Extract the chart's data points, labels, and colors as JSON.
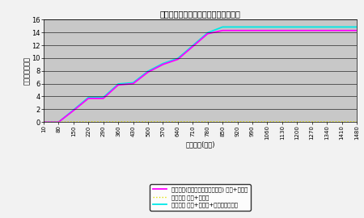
{
  "title": "税源移譲と定率減税廃止による増税額",
  "xlabel": "課税所得(万円)",
  "ylabel": "課税額（万円）",
  "x_ticks": [
    10,
    80,
    150,
    220,
    290,
    360,
    430,
    500,
    570,
    640,
    710,
    780,
    850,
    920,
    990,
    1060,
    1130,
    1200,
    1270,
    1340,
    1410,
    1480
  ],
  "ylim": [
    0,
    16
  ],
  "yticks": [
    0,
    2,
    4,
    6,
    8,
    10,
    12,
    14,
    16
  ],
  "plot_bg_color": "#c8c8c8",
  "fig_bg_color": "#f2f2f2",
  "line1_color": "#ff00ff",
  "line2_color": "#e0e000",
  "line3_color": "#00e8e8",
  "legend1": "定率減税(今年もし去年同様なら) 国税+地方税",
  "legend2": "増税割合 国税+地方税",
  "legend3": "増税割合 国税+地方税+定率減税廃止分",
  "x_data": [
    10,
    80,
    150,
    220,
    290,
    360,
    430,
    500,
    570,
    640,
    710,
    780,
    850,
    920,
    990,
    1060,
    1130,
    1200,
    1270,
    1340,
    1410,
    1480
  ],
  "line1_y": [
    0,
    0,
    1.8,
    3.7,
    3.7,
    5.8,
    6.0,
    7.8,
    9.0,
    9.8,
    11.8,
    13.8,
    14.3,
    14.3,
    14.3,
    14.3,
    14.3,
    14.3,
    14.3,
    14.3,
    14.3,
    14.3
  ],
  "line2_y": [
    0.0,
    0.0,
    0.05,
    0.05,
    0.05,
    0.05,
    0.05,
    0.05,
    0.05,
    0.05,
    0.05,
    0.05,
    0.05,
    0.05,
    0.05,
    0.05,
    0.05,
    0.05,
    0.05,
    0.05,
    0.05,
    0.05
  ],
  "line3_y": [
    0,
    0,
    1.9,
    3.85,
    3.85,
    5.95,
    6.15,
    7.95,
    9.15,
    9.95,
    11.95,
    13.95,
    14.85,
    14.85,
    14.85,
    14.85,
    14.85,
    14.85,
    14.85,
    14.85,
    14.85,
    14.85
  ]
}
